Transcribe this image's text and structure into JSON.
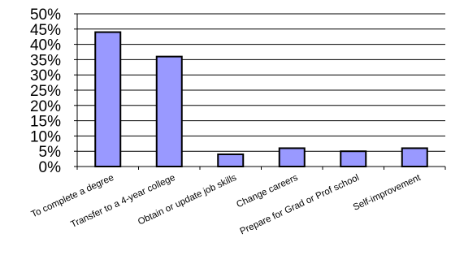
{
  "chart_data": {
    "type": "bar",
    "title": "",
    "xlabel": "",
    "ylabel": "",
    "categories": [
      "To complete a degree",
      "Transfer to a 4-year college",
      "Obtain or update job skills",
      "Change careers",
      "Prepare for Grad or Prof school",
      "Self-improvement"
    ],
    "values": [
      44,
      36,
      4,
      6,
      5,
      6
    ],
    "ylim": [
      0,
      50
    ],
    "yticks": [
      0,
      5,
      10,
      15,
      20,
      25,
      30,
      35,
      40,
      45,
      50
    ],
    "ytick_labels": [
      "0%",
      "5%",
      "10%",
      "15%",
      "20%",
      "25%",
      "30%",
      "35%",
      "40%",
      "45%",
      "50%"
    ],
    "grid": true,
    "legend": "none",
    "colors": {
      "bar_fill": "#9999ff",
      "bar_stroke": "#000000",
      "grid": "#000000",
      "axis": "#000000"
    }
  }
}
